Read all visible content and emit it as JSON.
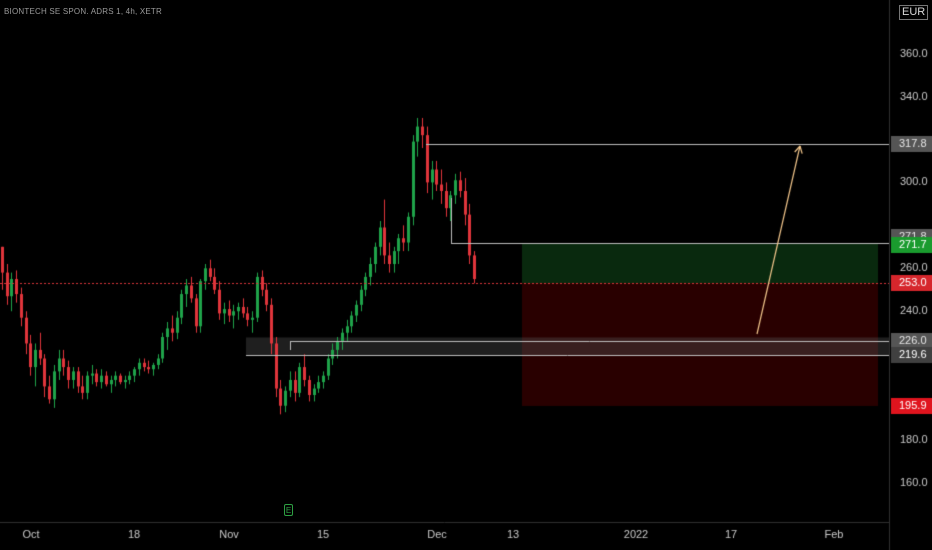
{
  "chart_data": {
    "type": "candlestick",
    "title": "BIONTECH SE SPON. ADRS 1, 4h, XETR",
    "currency": "EUR",
    "y_axis": {
      "ticks": [
        160,
        180,
        200,
        220,
        240,
        260,
        280,
        300,
        320,
        340,
        360
      ],
      "tick_labels": [
        "160.0",
        "180.0",
        "",
        "",
        "240.0",
        "260.0",
        "",
        "300.0",
        "",
        "340.0",
        "360.0"
      ],
      "range": [
        145,
        375
      ]
    },
    "x_axis": {
      "labels": [
        "Oct",
        "18",
        "Nov",
        "15",
        "Dec",
        "13",
        "2022",
        "17",
        "Feb"
      ]
    },
    "price_badges": [
      {
        "value": "317.8",
        "kind": "level"
      },
      {
        "value": "271.8",
        "kind": "level"
      },
      {
        "value": "271.7",
        "kind": "target"
      },
      {
        "value": "253.0",
        "kind": "current"
      },
      {
        "value": "226.0",
        "kind": "level"
      },
      {
        "value": "219.6",
        "kind": "support"
      },
      {
        "value": "195.9",
        "kind": "stop"
      }
    ],
    "levels": {
      "resistance_high": 317.8,
      "resistance_mid": 271.8,
      "current": 253.0,
      "support": 226.0,
      "support_zone": [
        219.6,
        227.8
      ],
      "target": 271.7,
      "entry": 253.0,
      "stop": 195.9
    },
    "candles": [
      [
        270,
        270,
        250,
        258
      ],
      [
        258,
        262,
        243,
        247
      ],
      [
        247,
        258,
        240,
        255
      ],
      [
        255,
        259,
        244,
        248
      ],
      [
        248,
        251,
        233,
        237
      ],
      [
        237,
        240,
        220,
        225
      ],
      [
        225,
        229,
        210,
        214
      ],
      [
        214,
        225,
        205,
        222
      ],
      [
        222,
        230,
        215,
        218
      ],
      [
        218,
        220,
        200,
        205
      ],
      [
        205,
        210,
        197,
        199
      ],
      [
        199,
        215,
        195,
        212
      ],
      [
        212,
        222,
        208,
        218
      ],
      [
        218,
        222,
        210,
        214
      ],
      [
        214,
        217,
        204,
        208
      ],
      [
        208,
        214,
        204,
        212
      ],
      [
        212,
        214,
        202,
        205
      ],
      [
        205,
        210,
        199,
        202
      ],
      [
        202,
        212,
        199,
        210
      ],
      [
        210,
        215,
        206,
        211
      ],
      [
        211,
        213,
        205,
        207
      ],
      [
        207,
        213,
        204,
        210
      ],
      [
        210,
        212,
        205,
        206
      ],
      [
        206,
        210,
        202,
        208
      ],
      [
        208,
        212,
        205,
        210
      ],
      [
        210,
        211,
        206,
        207
      ],
      [
        207,
        210,
        204,
        208
      ],
      [
        208,
        212,
        206,
        210
      ],
      [
        210,
        214,
        207,
        213
      ],
      [
        213,
        218,
        210,
        216
      ],
      [
        216,
        218,
        212,
        214
      ],
      [
        214,
        217,
        211,
        213
      ],
      [
        213,
        216,
        210,
        215
      ],
      [
        215,
        220,
        213,
        218
      ],
      [
        218,
        230,
        216,
        228
      ],
      [
        228,
        235,
        222,
        232
      ],
      [
        232,
        238,
        226,
        230
      ],
      [
        230,
        240,
        227,
        237
      ],
      [
        237,
        250,
        234,
        248
      ],
      [
        248,
        255,
        242,
        252
      ],
      [
        252,
        256,
        244,
        246
      ],
      [
        246,
        248,
        230,
        233
      ],
      [
        233,
        255,
        230,
        254
      ],
      [
        254,
        262,
        250,
        260
      ],
      [
        260,
        264,
        254,
        256
      ],
      [
        256,
        260,
        248,
        250
      ],
      [
        250,
        254,
        236,
        239
      ],
      [
        239,
        244,
        234,
        241
      ],
      [
        241,
        245,
        235,
        238
      ],
      [
        238,
        243,
        232,
        240
      ],
      [
        240,
        244,
        236,
        242
      ],
      [
        242,
        246,
        237,
        239
      ],
      [
        239,
        242,
        233,
        236
      ],
      [
        236,
        240,
        230,
        237
      ],
      [
        237,
        258,
        235,
        256
      ],
      [
        256,
        259,
        247,
        250
      ],
      [
        250,
        253,
        240,
        243
      ],
      [
        243,
        246,
        220,
        225
      ],
      [
        225,
        228,
        200,
        204
      ],
      [
        204,
        208,
        192,
        196
      ],
      [
        196,
        205,
        193,
        203
      ],
      [
        203,
        212,
        200,
        208
      ],
      [
        208,
        212,
        198,
        202
      ],
      [
        202,
        216,
        200,
        214
      ],
      [
        214,
        220,
        205,
        208
      ],
      [
        208,
        210,
        198,
        201
      ],
      [
        201,
        206,
        198,
        204
      ],
      [
        204,
        210,
        202,
        207
      ],
      [
        207,
        212,
        204,
        210
      ],
      [
        210,
        220,
        208,
        218
      ],
      [
        218,
        225,
        215,
        222
      ],
      [
        222,
        228,
        218,
        226
      ],
      [
        226,
        232,
        222,
        230
      ],
      [
        230,
        236,
        226,
        233
      ],
      [
        233,
        240,
        230,
        238
      ],
      [
        238,
        245,
        235,
        243
      ],
      [
        243,
        252,
        240,
        250
      ],
      [
        250,
        258,
        247,
        256
      ],
      [
        256,
        265,
        252,
        262
      ],
      [
        262,
        272,
        258,
        270
      ],
      [
        270,
        282,
        266,
        279
      ],
      [
        279,
        292,
        262,
        266
      ],
      [
        266,
        272,
        258,
        262
      ],
      [
        262,
        270,
        258,
        268
      ],
      [
        268,
        276,
        262,
        274
      ],
      [
        274,
        280,
        268,
        272
      ],
      [
        272,
        286,
        268,
        284
      ],
      [
        284,
        322,
        280,
        319
      ],
      [
        319,
        330,
        312,
        326
      ],
      [
        326,
        330,
        316,
        322
      ],
      [
        322,
        326,
        295,
        300
      ],
      [
        300,
        310,
        292,
        306
      ],
      [
        306,
        310,
        296,
        299
      ],
      [
        299,
        306,
        290,
        296
      ],
      [
        296,
        300,
        284,
        288
      ],
      [
        288,
        296,
        282,
        294
      ],
      [
        294,
        304,
        290,
        301
      ],
      [
        301,
        305,
        293,
        296
      ],
      [
        296,
        302,
        280,
        285
      ],
      [
        285,
        290,
        262,
        266
      ],
      [
        266,
        268,
        253,
        255
      ]
    ]
  }
}
